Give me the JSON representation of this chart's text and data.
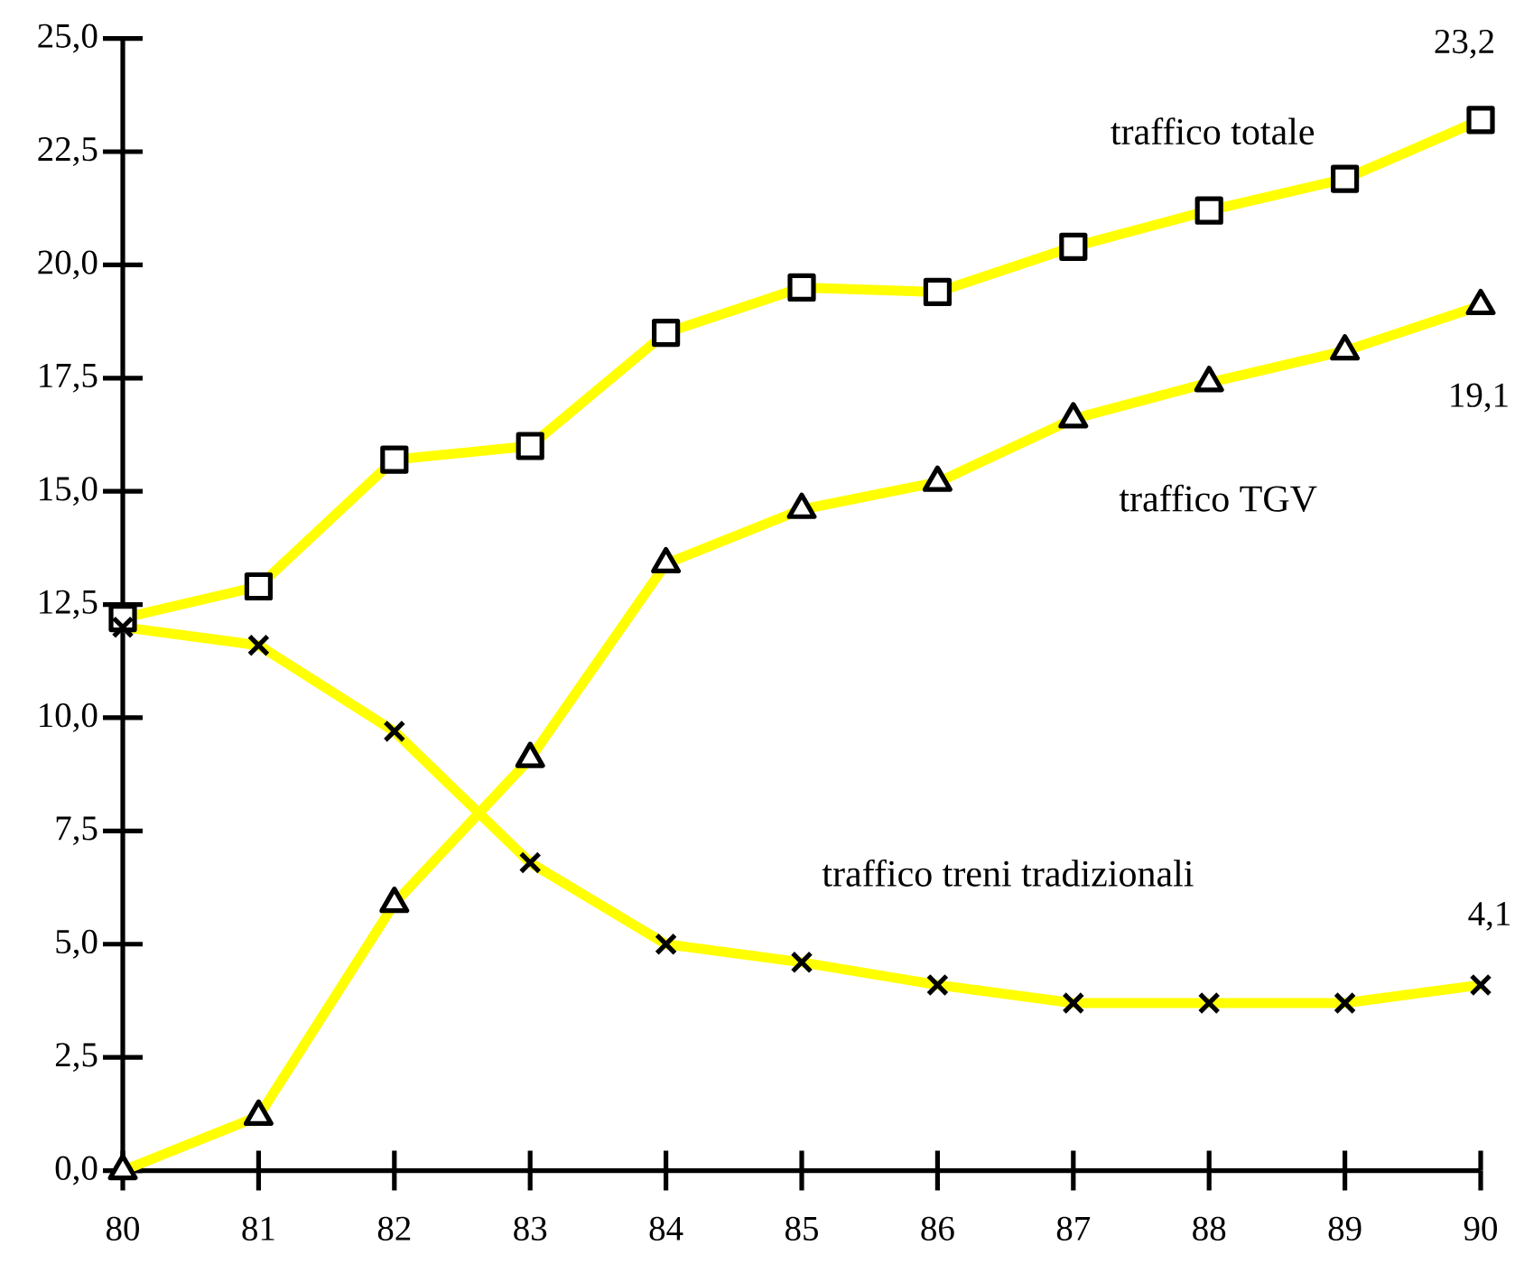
{
  "chart_data": {
    "type": "line",
    "x": [
      80,
      81,
      82,
      83,
      84,
      85,
      86,
      87,
      88,
      89,
      90
    ],
    "xlim": [
      80,
      90
    ],
    "xticks": [
      80,
      81,
      82,
      83,
      84,
      85,
      86,
      87,
      88,
      89,
      90
    ],
    "ylim": [
      0,
      25
    ],
    "yticks": [
      {
        "value": 0,
        "label": "0,0"
      },
      {
        "value": 2.5,
        "label": "2,5"
      },
      {
        "value": 5,
        "label": "5,0"
      },
      {
        "value": 7.5,
        "label": "7,5"
      },
      {
        "value": 10,
        "label": "10,0"
      },
      {
        "value": 12.5,
        "label": "12,5"
      },
      {
        "value": 15,
        "label": "15,0"
      },
      {
        "value": 17.5,
        "label": "17,5"
      },
      {
        "value": 20,
        "label": "20,0"
      },
      {
        "value": 22.5,
        "label": "22,5"
      },
      {
        "value": 25,
        "label": "25,0"
      }
    ],
    "series": [
      {
        "name": "traffico totale",
        "color": "#ffff00",
        "marker": "square",
        "values": [
          12.2,
          12.9,
          15.7,
          16.0,
          18.5,
          19.5,
          19.4,
          20.4,
          21.2,
          21.9,
          23.2
        ],
        "value_labels": [
          null,
          null,
          null,
          null,
          null,
          null,
          null,
          null,
          null,
          null,
          "23,2"
        ]
      },
      {
        "name": "traffico TGV",
        "color": "#ffff00",
        "marker": "triangle",
        "values": [
          0.0,
          1.2,
          5.9,
          9.1,
          13.4,
          14.6,
          15.2,
          16.6,
          17.4,
          18.1,
          19.1
        ],
        "value_labels": [
          null,
          null,
          null,
          null,
          null,
          null,
          null,
          null,
          null,
          null,
          "19,1"
        ]
      },
      {
        "name": "traffico treni tradizionali",
        "color": "#ffff00",
        "marker": "cross",
        "values": [
          12.0,
          11.6,
          9.7,
          6.8,
          5.0,
          4.6,
          4.1,
          3.7,
          3.7,
          3.7,
          4.1
        ],
        "value_labels": [
          null,
          null,
          null,
          null,
          null,
          null,
          null,
          null,
          null,
          null,
          "4,1"
        ]
      }
    ]
  }
}
